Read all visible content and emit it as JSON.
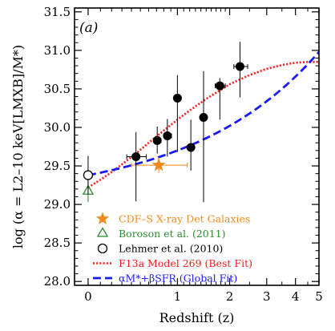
{
  "chart_data": {
    "type": "scatter",
    "panel_label": "(a)",
    "xlabel": "Redshift (z)",
    "ylabel": "log (α = L2–10 keV[LMXB]/M*)",
    "xlim": [
      -0.1,
      5.0
    ],
    "ylim": [
      27.95,
      31.55
    ],
    "x_scale": "log(1+z)",
    "x_ticks": [
      0,
      1,
      2,
      3,
      4,
      5
    ],
    "x_tick_labels": [
      "0",
      "1",
      "2",
      "3",
      "4",
      "5"
    ],
    "y_ticks": [
      28.0,
      28.5,
      29.0,
      29.5,
      30.0,
      30.5,
      31.0,
      31.5
    ],
    "y_tick_labels": [
      "28.0",
      "28.5",
      "29.0",
      "29.5",
      "30.0",
      "30.5",
      "31.0",
      "31.5"
    ],
    "grid": false,
    "legend_position": "bottom-left",
    "series": [
      {
        "name": "CDF–S X-ray Det Galaxies",
        "marker": "star",
        "color": "#f08a1c",
        "points": [
          {
            "x": 0.73,
            "y": 29.51,
            "xerr": [
              0.33,
              0.43
            ],
            "yerr": [
              0.1,
              0.1
            ]
          }
        ]
      },
      {
        "name": "Boroson et al. (2011)",
        "marker": "triangle-open",
        "color": "#2e8b2e",
        "points": [
          {
            "x": 0.0,
            "y": 29.17,
            "xerr": [
              0,
              0
            ],
            "yerr": [
              0.14,
              0.14
            ]
          }
        ]
      },
      {
        "name": "Lehmer et al. (2010)",
        "marker": "circle-open",
        "color": "#000000",
        "points": [
          {
            "x": 0.0,
            "y": 29.38,
            "xerr": [
              0,
              0
            ],
            "yerr": [
              0.25,
              0.25
            ]
          }
        ]
      },
      {
        "name": "F13a Model 269 (Best Fit)",
        "marker": "line-dotted",
        "color": "#ff1a1a",
        "x": [
          0.0,
          0.1,
          0.2,
          0.3,
          0.45,
          0.6,
          0.8,
          1.0,
          1.2,
          1.5,
          2.0,
          2.5,
          3.0,
          3.5,
          4.0,
          4.5,
          5.0
        ],
        "y": [
          29.22,
          29.32,
          29.42,
          29.52,
          29.66,
          29.8,
          29.96,
          30.1,
          30.22,
          30.37,
          30.56,
          30.68,
          30.76,
          30.81,
          30.84,
          30.85,
          30.85
        ]
      },
      {
        "name": "αM*+βSFR (Global Fit)",
        "marker": "line-dashed",
        "color": "#1a1aff",
        "x": [
          0.0,
          5.0
        ],
        "y": [
          29.38,
          30.98
        ]
      },
      {
        "name": "",
        "marker": "circle-filled",
        "color": "#000000",
        "points": [
          {
            "x": 0.45,
            "y": 29.62,
            "xerr": [
              0.1,
              0.12
            ],
            "yerr": [
              0.58,
              0.32
            ]
          },
          {
            "x": 0.71,
            "y": 29.83,
            "xerr": [
              0.05,
              0.05
            ],
            "yerr": [
              0.17,
              0.18
            ]
          },
          {
            "x": 0.85,
            "y": 29.89,
            "xerr": [
              0.05,
              0.06
            ],
            "yerr": [
              0.27,
              0.22
            ]
          },
          {
            "x": 1.0,
            "y": 30.38,
            "xerr": [
              0.0,
              0.0
            ],
            "yerr": [
              0.7,
              0.3
            ]
          },
          {
            "x": 1.22,
            "y": 29.74,
            "xerr": [
              0.0,
              0.0
            ],
            "yerr": [
              0.3,
              0.36
            ]
          },
          {
            "x": 1.45,
            "y": 30.13,
            "xerr": [
              0.0,
              0.0
            ],
            "yerr": [
              1.1,
              0.6
            ]
          },
          {
            "x": 1.78,
            "y": 30.54,
            "xerr": [
              0.1,
              0.12
            ],
            "yerr": [
              0.44,
              0.1
            ]
          },
          {
            "x": 2.25,
            "y": 30.79,
            "xerr": [
              0.15,
              0.2
            ],
            "yerr": [
              0.4,
              0.32
            ]
          }
        ]
      }
    ]
  }
}
